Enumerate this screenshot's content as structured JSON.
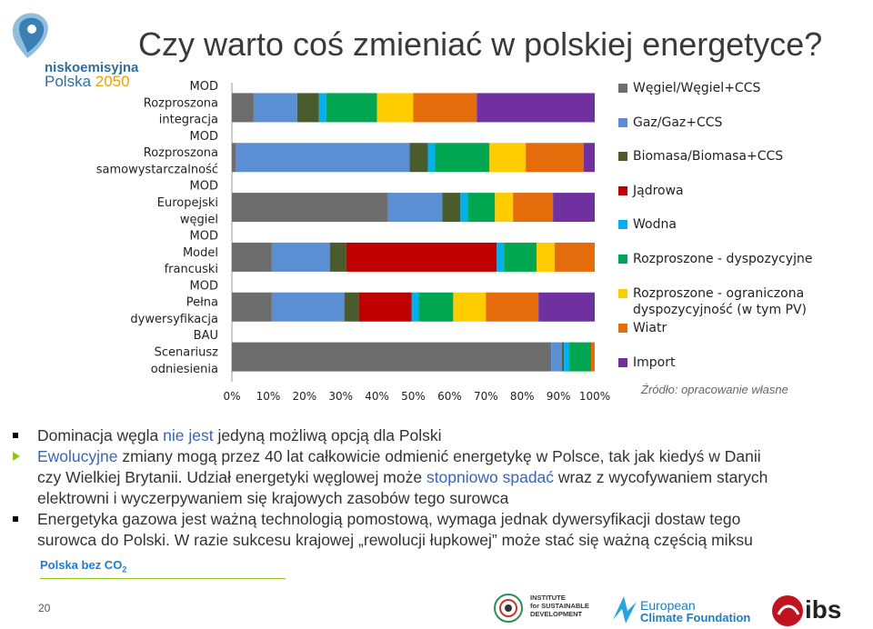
{
  "title": "Czy warto coś zmieniać w polskiej energetyce?",
  "logo": {
    "line1": "niskoemisyjna",
    "line2a": "Polska ",
    "line2b": "2050"
  },
  "chart_data": {
    "type": "bar",
    "orientation": "horizontal",
    "stacked": true,
    "percent": true,
    "categories": [
      [
        "MOD",
        "Rozproszona",
        "integracja"
      ],
      [
        "MOD",
        "Rozproszona",
        "samowystarczalność"
      ],
      [
        "MOD",
        "Europejski",
        "węgiel"
      ],
      [
        "MOD",
        "Model",
        "francuski"
      ],
      [
        "MOD",
        "Pełna",
        "dywersyfikacja"
      ],
      [
        "BAU",
        "Scenariusz",
        "odniesienia"
      ]
    ],
    "xlim": [
      0,
      100
    ],
    "xticks": [
      "0%",
      "10%",
      "20%",
      "30%",
      "40%",
      "50%",
      "60%",
      "70%",
      "80%",
      "90%",
      "100%"
    ],
    "series": [
      {
        "name": "Węgiel/Węgiel+CCS",
        "color": "#6d6d6d",
        "values": [
          6,
          1,
          43,
          11,
          11,
          88
        ]
      },
      {
        "name": "Gaz/Gaz+CCS",
        "color": "#5b8fd4",
        "values": [
          12,
          48,
          15,
          16,
          20,
          3
        ]
      },
      {
        "name": "Biomasa/Biomasa+CCS",
        "color": "#4a5c2b",
        "values": [
          6,
          5,
          5,
          4.5,
          4,
          0.5
        ]
      },
      {
        "name": "Jądrowa",
        "color": "#c00000",
        "values": [
          0,
          0,
          0,
          41.5,
          14.5,
          0
        ]
      },
      {
        "name": "Wodna",
        "color": "#00b0f0",
        "values": [
          2,
          2,
          2,
          2,
          2,
          1.5
        ]
      },
      {
        "name": "Rozproszone - dyspozycyjne",
        "color": "#00a650",
        "values": [
          14,
          15,
          7.5,
          9,
          9.5,
          6
        ]
      },
      {
        "name": "Rozproszone - ograniczona dyspozycyjność (w tym PV)",
        "color": "#ffcc00",
        "values": [
          10,
          10,
          5,
          5,
          9,
          0
        ]
      },
      {
        "name": "Wiatr",
        "color": "#e46c0a",
        "values": [
          17.5,
          16,
          11,
          11,
          14.5,
          1
        ]
      },
      {
        "name": "Import",
        "color": "#7030a0",
        "values": [
          32.5,
          3,
          11.5,
          0,
          15.5,
          0
        ]
      }
    ]
  },
  "legend": [
    {
      "label": "Węgiel/Węgiel+CCS",
      "color": "#6d6d6d"
    },
    {
      "label": "Gaz/Gaz+CCS",
      "color": "#5b8fd4"
    },
    {
      "label": "Biomasa/Biomasa+CCS",
      "color": "#4a5c2b"
    },
    {
      "label": "Jądrowa",
      "color": "#c00000"
    },
    {
      "label": "Wodna",
      "color": "#00b0f0"
    },
    {
      "label": "Rozproszone - dyspozycyjne",
      "color": "#00a650"
    },
    {
      "label": "Rozproszone - ograniczona",
      "label2": "dyspozycyjność (w tym PV)",
      "color": "#ffcc00"
    },
    {
      "label": "Wiatr",
      "color": "#e46c0a"
    },
    {
      "label": "Import",
      "color": "#7030a0"
    }
  ],
  "source": "Źródło: opracowanie własne",
  "bullets": {
    "b1": {
      "a": "Dominacja węgla ",
      "b": "nie jest",
      "c": " jedyną możliwą opcją dla Polski"
    },
    "b2": {
      "l1a": "Ewolucyjne",
      "l1b": " zmiany mogą przez 40 lat całkowicie odmienić energetykę w Polsce, tak jak kiedyś w Danii",
      "l2a": "czy Wielkiej Brytanii. Udział energetyki węglowej może ",
      "l2b": "stopniowo spadać",
      "l2c": " wraz z wycofywaniem starych",
      "l3": "elektrowni i wyczerpywaniem się krajowych zasobów tego surowca"
    },
    "b3": {
      "l1": "Energetyka gazowa jest ważną technologią pomostową, wymaga jednak dywersyfikacji dostaw tego",
      "l2": "surowca do Polski. W razie sukcesu krajowej „rewolucji łupkowej” może stać się ważną częścią miksu"
    }
  },
  "colors": {
    "bullet_square": "#000000",
    "bullet_arrow": "#8fc31f",
    "highlight": "#3b64b8"
  },
  "footer": {
    "pbc_text": "Polska bez CO",
    "pbc_sub": "2",
    "page_number": "20",
    "isd_lines": [
      "INSTITUTE",
      "for SUSTAINABLE",
      "DEVELOPMENT"
    ],
    "ecf_top": "European",
    "ecf_bottom": "Climate Foundation",
    "ibs": "ibs"
  }
}
